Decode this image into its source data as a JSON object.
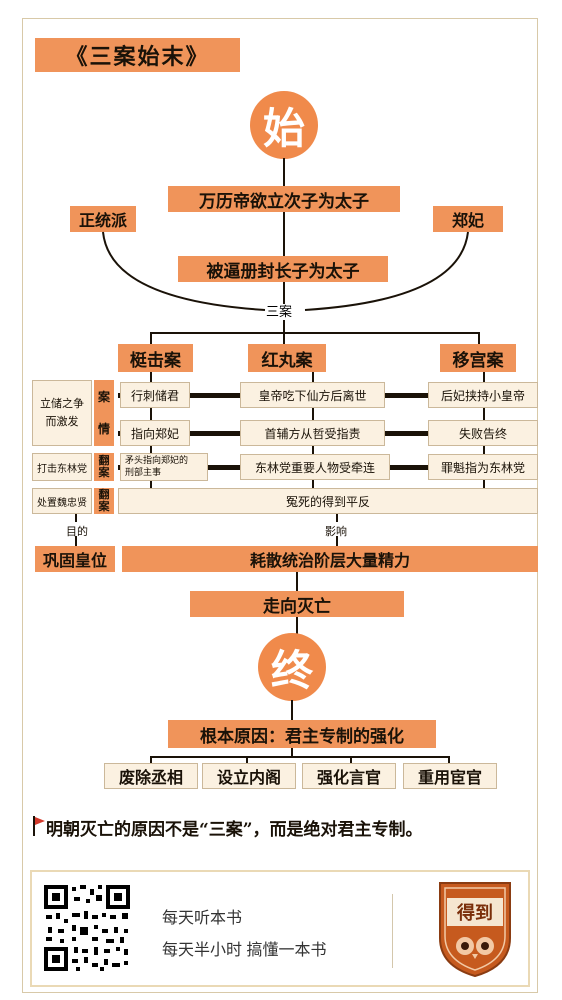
{
  "title": "《三案始末》",
  "start_char": "始",
  "end_char": "终",
  "top": {
    "event1": "万历帝欲立次子为太子",
    "event2": "被逼册封长子为太子",
    "left_party": "正统派",
    "right_party": "郑妃",
    "three_cases": "三案"
  },
  "cases": [
    "梃击案",
    "红丸案",
    "移宫案"
  ],
  "left_labels": {
    "l1a": "立储之争",
    "l1b": "而激发",
    "l2": "打击东林党",
    "l3": "处置魏忠贤"
  },
  "tags": {
    "an_qing_1": "案",
    "an_qing_2": "情",
    "fan_an_1": "翻",
    "fan_an_2": "案",
    "fan_an_3": "翻",
    "fan_an_4": "案"
  },
  "rows": {
    "r1": [
      "行刺储君",
      "皇帝吃下仙方后离世",
      "后妃挟持小皇帝"
    ],
    "r2": [
      "指向郑妃",
      "首辅方从哲受指责",
      "失败告终"
    ],
    "r3a": "矛头指向郑妃的",
    "r3b": "刑部主事",
    "r3": [
      "东林党重要人物受牵连",
      "罪魁指为东林党"
    ],
    "r4": "冤死的得到平反"
  },
  "purpose_label": "目的",
  "impact_label": "影响",
  "purpose": "巩固皇位",
  "impact": "耗散统治阶层大量精力",
  "result": "走向灭亡",
  "root_cause": "根本原因：君主专制的强化",
  "causes": [
    "废除丞相",
    "设立内阁",
    "强化言官",
    "重用宦官"
  ],
  "conclusion": "明朝灭亡的原因不是“三案”，而是绝对君主专制。",
  "footer": {
    "line1": "每天听本书",
    "line2": "每天半小时 搞懂一本书",
    "logo_text": "得到"
  },
  "colors": {
    "orange": "#f0945a",
    "circle": "#f08a4b",
    "cream": "#fbf1e1",
    "dark": "#1a1208",
    "flag": "#d33a2c"
  }
}
